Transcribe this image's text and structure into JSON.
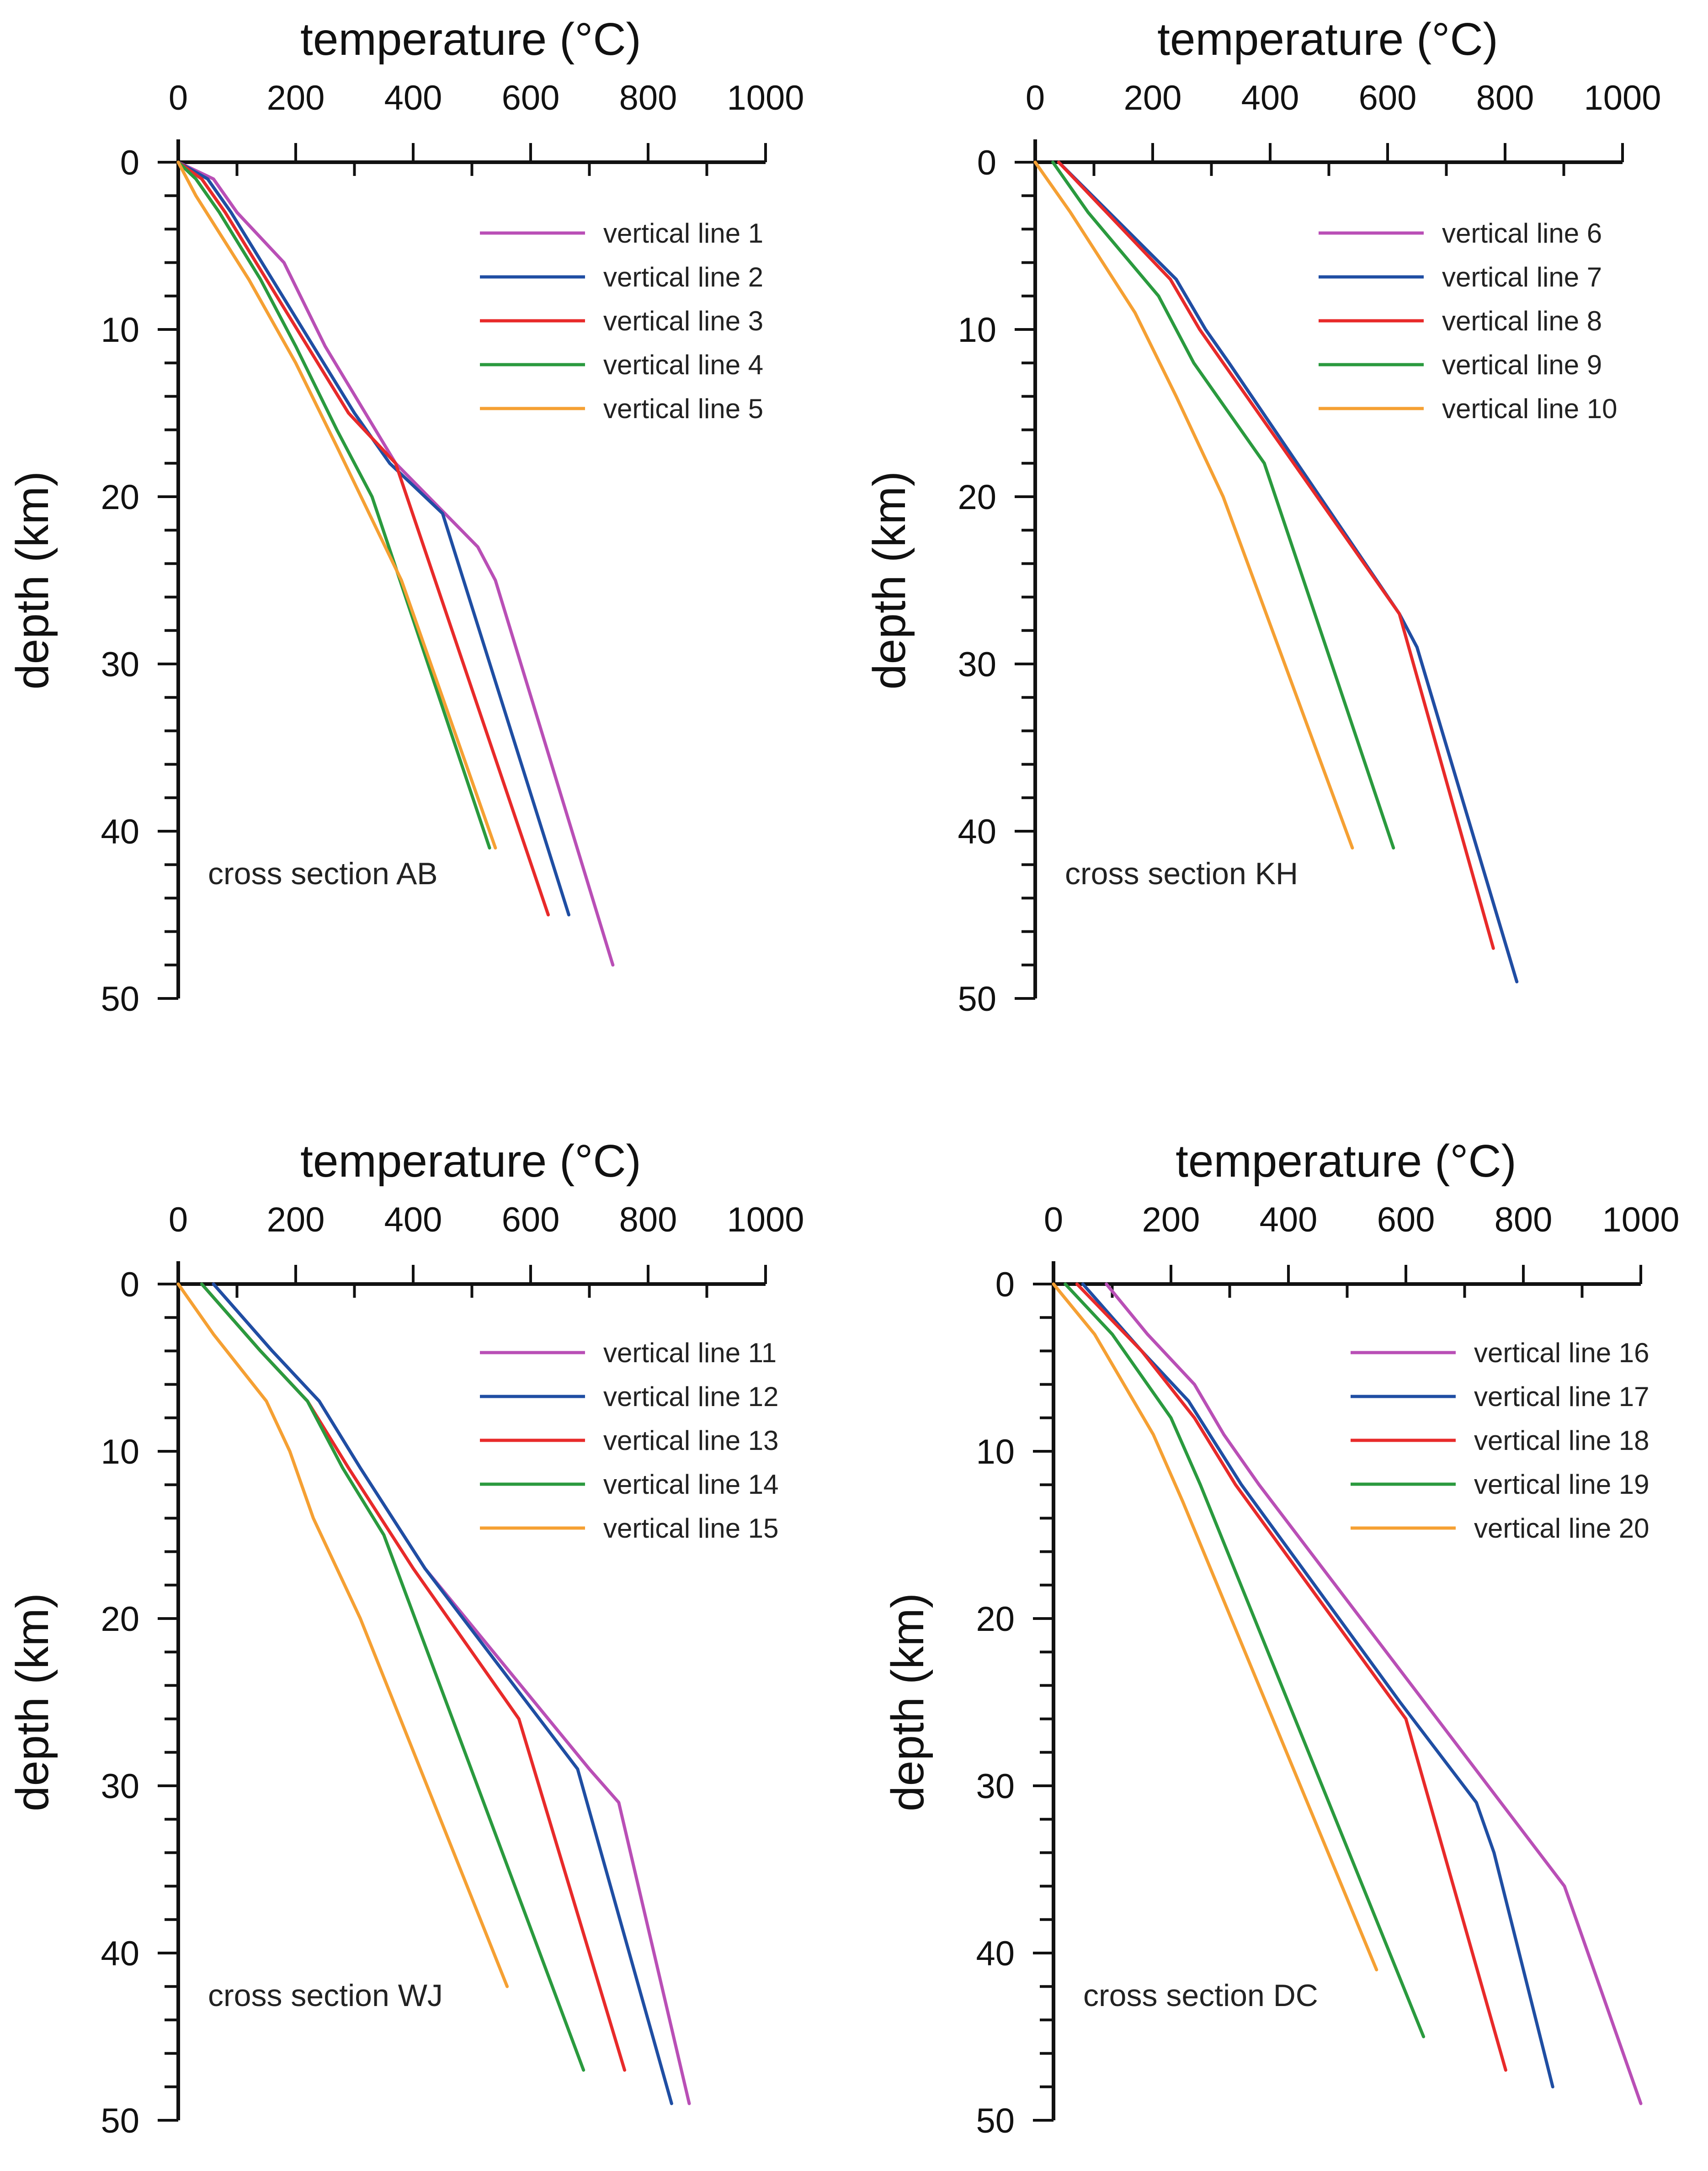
{
  "chart_data": [
    {
      "type": "line",
      "caption": "cross section AB",
      "xlabel": "temperature (°C)",
      "ylabel": "depth (km)",
      "xlim": [
        0,
        1000
      ],
      "ylim": [
        0,
        50
      ],
      "xticks": [
        0,
        200,
        400,
        600,
        800,
        1000
      ],
      "yticks": [
        0,
        10,
        20,
        30,
        40,
        50
      ],
      "x_axis_position": "top",
      "y_inverted": true,
      "legend_position": "top-right",
      "series": [
        {
          "name": "vertical line 1",
          "color": "#b94fb6",
          "points": [
            [
              0,
              0
            ],
            [
              60,
              1
            ],
            [
              100,
              3
            ],
            [
              180,
              6
            ],
            [
              250,
              11
            ],
            [
              370,
              18
            ],
            [
              510,
              23
            ],
            [
              540,
              25
            ],
            [
              740,
              48
            ]
          ]
        },
        {
          "name": "vertical line 2",
          "color": "#1f4ea3",
          "points": [
            [
              0,
              0
            ],
            [
              50,
              1
            ],
            [
              90,
              3
            ],
            [
              160,
              7
            ],
            [
              230,
              11
            ],
            [
              300,
              15
            ],
            [
              360,
              18
            ],
            [
              450,
              21
            ],
            [
              665,
              45
            ]
          ]
        },
        {
          "name": "vertical line 3",
          "color": "#e82a2a",
          "points": [
            [
              0,
              0
            ],
            [
              40,
              1
            ],
            [
              80,
              3
            ],
            [
              150,
              7
            ],
            [
              220,
              11
            ],
            [
              290,
              15
            ],
            [
              370,
              18
            ],
            [
              630,
              45
            ]
          ]
        },
        {
          "name": "vertical line 4",
          "color": "#2a9a3e",
          "points": [
            [
              0,
              0
            ],
            [
              30,
              1
            ],
            [
              70,
              3
            ],
            [
              140,
              7
            ],
            [
              200,
              11
            ],
            [
              270,
              16
            ],
            [
              330,
              20
            ],
            [
              530,
              41
            ]
          ]
        },
        {
          "name": "vertical line 5",
          "color": "#f5a033",
          "points": [
            [
              0,
              0
            ],
            [
              30,
              2
            ],
            [
              120,
              7
            ],
            [
              200,
              12
            ],
            [
              270,
              17
            ],
            [
              380,
              25
            ],
            [
              540,
              41
            ]
          ]
        }
      ]
    },
    {
      "type": "line",
      "caption": "cross section KH",
      "xlabel": "temperature (°C)",
      "ylabel": "depth (km)",
      "xlim": [
        0,
        1000
      ],
      "ylim": [
        0,
        50
      ],
      "xticks": [
        0,
        200,
        400,
        600,
        800,
        1000
      ],
      "yticks": [
        0,
        10,
        20,
        30,
        40,
        50
      ],
      "x_axis_position": "top",
      "y_inverted": true,
      "legend_position": "top-right",
      "series": [
        {
          "name": "vertical line 6",
          "color": "#b94fb6",
          "points": [
            [
              40,
              0
            ],
            [
              240,
              7
            ],
            [
              290,
              10
            ],
            [
              330,
              12
            ],
            [
              620,
              27
            ],
            [
              650,
              29
            ],
            [
              820,
              49
            ]
          ]
        },
        {
          "name": "vertical line 7",
          "color": "#1f4ea3",
          "points": [
            [
              40,
              0
            ],
            [
              240,
              7
            ],
            [
              290,
              10
            ],
            [
              330,
              12
            ],
            [
              620,
              27
            ],
            [
              650,
              29
            ],
            [
              820,
              49
            ]
          ]
        },
        {
          "name": "vertical line 8",
          "color": "#e82a2a",
          "points": [
            [
              40,
              0
            ],
            [
              230,
              7
            ],
            [
              280,
              10
            ],
            [
              320,
              12
            ],
            [
              620,
              27
            ],
            [
              780,
              47
            ]
          ]
        },
        {
          "name": "vertical line 9",
          "color": "#2a9a3e",
          "points": [
            [
              30,
              0
            ],
            [
              90,
              3
            ],
            [
              210,
              8
            ],
            [
              270,
              12
            ],
            [
              390,
              18
            ],
            [
              610,
              41
            ]
          ]
        },
        {
          "name": "vertical line 10",
          "color": "#f5a033",
          "points": [
            [
              0,
              0
            ],
            [
              60,
              3
            ],
            [
              170,
              9
            ],
            [
              240,
              14
            ],
            [
              320,
              20
            ],
            [
              540,
              41
            ]
          ]
        }
      ]
    },
    {
      "type": "line",
      "caption": "cross section WJ",
      "xlabel": "temperature (°C)",
      "ylabel": "depth (km)",
      "xlim": [
        0,
        1000
      ],
      "ylim": [
        0,
        50
      ],
      "xticks": [
        0,
        200,
        400,
        600,
        800,
        1000
      ],
      "yticks": [
        0,
        10,
        20,
        30,
        40,
        50
      ],
      "x_axis_position": "top",
      "y_inverted": true,
      "legend_position": "top-right",
      "series": [
        {
          "name": "vertical line 11",
          "color": "#b94fb6",
          "points": [
            [
              60,
              0
            ],
            [
              160,
              4
            ],
            [
              240,
              7
            ],
            [
              310,
              11
            ],
            [
              420,
              17
            ],
            [
              700,
              29
            ],
            [
              750,
              31
            ],
            [
              870,
              49
            ]
          ]
        },
        {
          "name": "vertical line 12",
          "color": "#1f4ea3",
          "points": [
            [
              60,
              0
            ],
            [
              160,
              4
            ],
            [
              240,
              7
            ],
            [
              310,
              11
            ],
            [
              420,
              17
            ],
            [
              680,
              29
            ],
            [
              840,
              49
            ]
          ]
        },
        {
          "name": "vertical line 13",
          "color": "#e82a2a",
          "points": [
            [
              40,
              0
            ],
            [
              140,
              4
            ],
            [
              220,
              7
            ],
            [
              290,
              11
            ],
            [
              400,
              17
            ],
            [
              580,
              26
            ],
            [
              760,
              47
            ]
          ]
        },
        {
          "name": "vertical line 14",
          "color": "#2a9a3e",
          "points": [
            [
              40,
              0
            ],
            [
              140,
              4
            ],
            [
              220,
              7
            ],
            [
              280,
              11
            ],
            [
              350,
              15
            ],
            [
              690,
              47
            ]
          ]
        },
        {
          "name": "vertical line 15",
          "color": "#f5a033",
          "points": [
            [
              0,
              0
            ],
            [
              60,
              3
            ],
            [
              150,
              7
            ],
            [
              190,
              10
            ],
            [
              230,
              14
            ],
            [
              310,
              20
            ],
            [
              560,
              42
            ]
          ]
        }
      ]
    },
    {
      "type": "line",
      "caption": "cross section DC",
      "xlabel": "temperature (°C)",
      "ylabel": "depth (km)",
      "xlim": [
        0,
        1000
      ],
      "ylim": [
        0,
        50
      ],
      "xticks": [
        0,
        200,
        400,
        600,
        800,
        1000
      ],
      "yticks": [
        0,
        10,
        20,
        30,
        40,
        50
      ],
      "x_axis_position": "top",
      "y_inverted": true,
      "legend_position": "top-right",
      "series": [
        {
          "name": "vertical line 16",
          "color": "#b94fb6",
          "points": [
            [
              90,
              0
            ],
            [
              160,
              3
            ],
            [
              240,
              6
            ],
            [
              290,
              9
            ],
            [
              350,
              12
            ],
            [
              870,
              36
            ],
            [
              890,
              38
            ],
            [
              1000,
              49
            ]
          ]
        },
        {
          "name": "vertical line 17",
          "color": "#1f4ea3",
          "points": [
            [
              50,
              0
            ],
            [
              150,
              4
            ],
            [
              230,
              7
            ],
            [
              320,
              12
            ],
            [
              590,
              25
            ],
            [
              720,
              31
            ],
            [
              750,
              34
            ],
            [
              850,
              48
            ]
          ]
        },
        {
          "name": "vertical line 18",
          "color": "#e82a2a",
          "points": [
            [
              40,
              0
            ],
            [
              150,
              4
            ],
            [
              240,
              8
            ],
            [
              310,
              12
            ],
            [
              600,
              26
            ],
            [
              770,
              47
            ]
          ]
        },
        {
          "name": "vertical line 19",
          "color": "#2a9a3e",
          "points": [
            [
              20,
              0
            ],
            [
              100,
              3
            ],
            [
              200,
              8
            ],
            [
              250,
              12
            ],
            [
              630,
              45
            ]
          ]
        },
        {
          "name": "vertical line 20",
          "color": "#f5a033",
          "points": [
            [
              0,
              0
            ],
            [
              70,
              3
            ],
            [
              170,
              9
            ],
            [
              220,
              13
            ],
            [
              550,
              41
            ]
          ]
        }
      ]
    }
  ]
}
